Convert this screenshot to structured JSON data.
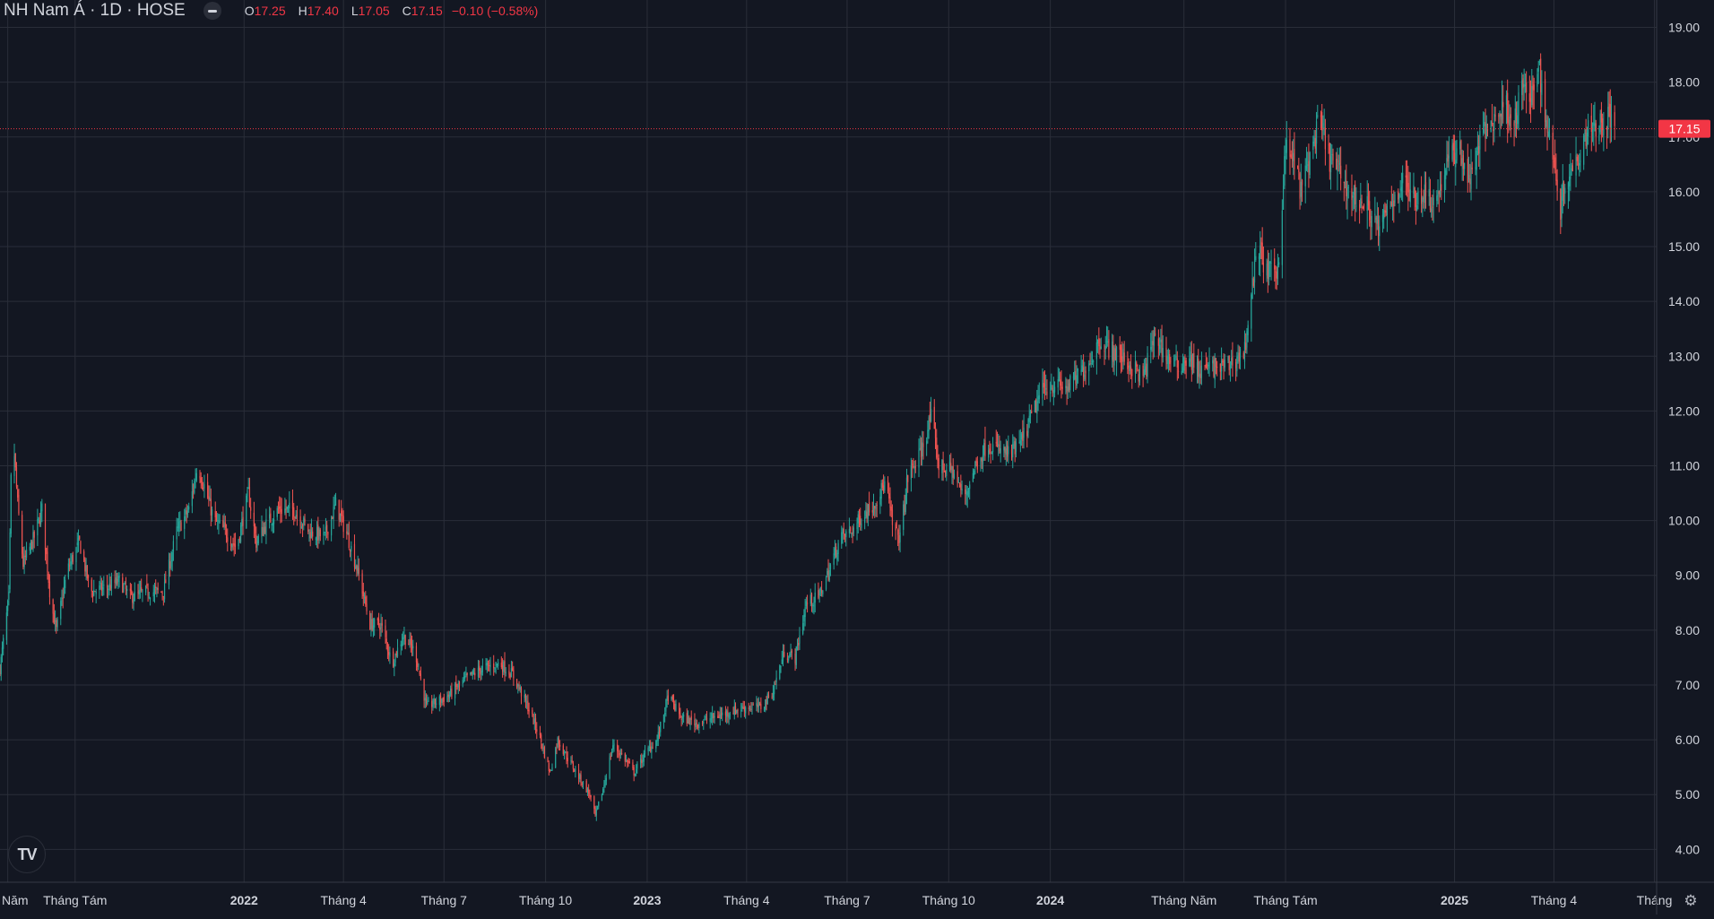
{
  "legend": {
    "title": "NH Nam Á · 1D · HOSE",
    "open_label": "O",
    "open_value": "17.25",
    "high_label": "H",
    "high_value": "17.40",
    "low_label": "L",
    "low_value": "17.05",
    "close_label": "C",
    "close_value": "17.15",
    "change": "−0.10 (−0.58%)"
  },
  "logo_text": "TV",
  "settings_icon": "⚙",
  "colors": {
    "background": "#131722",
    "grid": "#2a2e39",
    "up": "#26a69a",
    "down": "#ef5350",
    "price_label": "#f23645",
    "text": "#d1d4dc"
  },
  "chart_data": {
    "type": "candlestick",
    "symbol": "NH Nam Á",
    "interval": "1D",
    "exchange": "HOSE",
    "ylim": [
      3.4,
      19.5
    ],
    "y_ticks": [
      "19.00",
      "18.00",
      "17.00",
      "16.00",
      "15.00",
      "14.00",
      "13.00",
      "12.00",
      "11.00",
      "10.00",
      "9.00",
      "8.00",
      "7.00",
      "6.00",
      "5.00",
      "4.00"
    ],
    "x_ticks": [
      {
        "label": "Năm",
        "date": "2021-06-01",
        "bold": false
      },
      {
        "label": "Tháng Tám",
        "date": "2021-08-01",
        "bold": false
      },
      {
        "label": "2022",
        "date": "2022-01-01",
        "bold": true
      },
      {
        "label": "Tháng 4",
        "date": "2022-04-01",
        "bold": false
      },
      {
        "label": "Tháng 7",
        "date": "2022-07-01",
        "bold": false
      },
      {
        "label": "Tháng 10",
        "date": "2022-10-01",
        "bold": false
      },
      {
        "label": "2023",
        "date": "2023-01-01",
        "bold": true
      },
      {
        "label": "Tháng 4",
        "date": "2023-04-01",
        "bold": false
      },
      {
        "label": "Tháng 7",
        "date": "2023-07-01",
        "bold": false
      },
      {
        "label": "Tháng 10",
        "date": "2023-10-01",
        "bold": false
      },
      {
        "label": "2024",
        "date": "2024-01-01",
        "bold": true
      },
      {
        "label": "Tháng Năm",
        "date": "2024-05-01",
        "bold": false
      },
      {
        "label": "Tháng Tám",
        "date": "2024-08-01",
        "bold": false
      },
      {
        "label": "2025",
        "date": "2025-01-01",
        "bold": true
      },
      {
        "label": "Tháng 4",
        "date": "2025-04-01",
        "bold": false
      },
      {
        "label": "Tháng",
        "date": "2025-07-01",
        "bold": false
      }
    ],
    "last_price": 17.15,
    "last_price_label": "17.15",
    "close_path": [
      [
        "2021-05-25",
        7.3
      ],
      [
        "2021-06-02",
        8.6
      ],
      [
        "2021-06-05",
        11.8
      ],
      [
        "2021-06-10",
        10.3
      ],
      [
        "2021-06-15",
        9.2
      ],
      [
        "2021-06-25",
        9.7
      ],
      [
        "2021-07-02",
        10.2
      ],
      [
        "2021-07-10",
        8.5
      ],
      [
        "2021-07-15",
        8.0
      ],
      [
        "2021-07-25",
        9.1
      ],
      [
        "2021-08-05",
        9.6
      ],
      [
        "2021-08-15",
        8.7
      ],
      [
        "2021-09-01",
        8.8
      ],
      [
        "2021-09-10",
        8.9
      ],
      [
        "2021-09-20",
        8.6
      ],
      [
        "2021-10-05",
        8.7
      ],
      [
        "2021-10-20",
        8.7
      ],
      [
        "2021-11-01",
        9.8
      ],
      [
        "2021-11-12",
        10.2
      ],
      [
        "2021-11-20",
        11.0
      ],
      [
        "2021-11-25",
        10.7
      ],
      [
        "2021-12-05",
        10.0
      ],
      [
        "2021-12-15",
        9.8
      ],
      [
        "2021-12-25",
        9.5
      ],
      [
        "2022-01-05",
        10.5
      ],
      [
        "2022-01-12",
        9.6
      ],
      [
        "2022-01-20",
        9.9
      ],
      [
        "2022-02-01",
        10.2
      ],
      [
        "2022-02-15",
        10.2
      ],
      [
        "2022-03-01",
        9.8
      ],
      [
        "2022-03-15",
        9.7
      ],
      [
        "2022-03-25",
        10.3
      ],
      [
        "2022-04-05",
        9.7
      ],
      [
        "2022-04-15",
        9.0
      ],
      [
        "2022-04-25",
        8.1
      ],
      [
        "2022-05-05",
        8.1
      ],
      [
        "2022-05-15",
        7.4
      ],
      [
        "2022-05-25",
        7.9
      ],
      [
        "2022-06-05",
        7.6
      ],
      [
        "2022-06-15",
        6.6
      ],
      [
        "2022-06-25",
        6.7
      ],
      [
        "2022-07-05",
        6.8
      ],
      [
        "2022-07-20",
        7.1
      ],
      [
        "2022-08-05",
        7.3
      ],
      [
        "2022-08-20",
        7.4
      ],
      [
        "2022-09-01",
        7.2
      ],
      [
        "2022-09-15",
        6.6
      ],
      [
        "2022-09-25",
        6.1
      ],
      [
        "2022-10-05",
        5.4
      ],
      [
        "2022-10-12",
        6.0
      ],
      [
        "2022-10-20",
        5.7
      ],
      [
        "2022-11-01",
        5.3
      ],
      [
        "2022-11-10",
        5.0
      ],
      [
        "2022-11-15",
        4.6
      ],
      [
        "2022-11-22",
        5.1
      ],
      [
        "2022-12-01",
        5.9
      ],
      [
        "2022-12-10",
        5.7
      ],
      [
        "2022-12-20",
        5.4
      ],
      [
        "2023-01-01",
        5.8
      ],
      [
        "2023-01-10",
        6.0
      ],
      [
        "2023-01-20",
        6.8
      ],
      [
        "2023-02-01",
        6.4
      ],
      [
        "2023-02-15",
        6.3
      ],
      [
        "2023-03-01",
        6.4
      ],
      [
        "2023-03-15",
        6.5
      ],
      [
        "2023-04-01",
        6.6
      ],
      [
        "2023-04-15",
        6.6
      ],
      [
        "2023-04-25",
        6.9
      ],
      [
        "2023-05-05",
        7.6
      ],
      [
        "2023-05-15",
        7.5
      ],
      [
        "2023-05-25",
        8.5
      ],
      [
        "2023-06-05",
        8.6
      ],
      [
        "2023-06-15",
        9.1
      ],
      [
        "2023-06-25",
        9.7
      ],
      [
        "2023-07-05",
        9.8
      ],
      [
        "2023-07-15",
        10.1
      ],
      [
        "2023-07-25",
        10.3
      ],
      [
        "2023-08-05",
        10.7
      ],
      [
        "2023-08-12",
        9.8
      ],
      [
        "2023-08-18",
        9.7
      ],
      [
        "2023-08-25",
        10.8
      ],
      [
        "2023-09-05",
        11.2
      ],
      [
        "2023-09-15",
        11.9
      ],
      [
        "2023-09-22",
        11.0
      ],
      [
        "2023-10-05",
        10.9
      ],
      [
        "2023-10-15",
        10.4
      ],
      [
        "2023-10-25",
        11.0
      ],
      [
        "2023-11-05",
        11.4
      ],
      [
        "2023-11-15",
        11.3
      ],
      [
        "2023-11-25",
        11.2
      ],
      [
        "2023-12-05",
        11.4
      ],
      [
        "2023-12-15",
        11.9
      ],
      [
        "2023-12-25",
        12.4
      ],
      [
        "2024-01-05",
        12.5
      ],
      [
        "2024-01-15",
        12.4
      ],
      [
        "2024-01-25",
        12.6
      ],
      [
        "2024-02-05",
        12.9
      ],
      [
        "2024-02-15",
        13.3
      ],
      [
        "2024-02-25",
        13.1
      ],
      [
        "2024-03-05",
        13.0
      ],
      [
        "2024-03-15",
        12.8
      ],
      [
        "2024-03-25",
        12.6
      ],
      [
        "2024-04-05",
        13.4
      ],
      [
        "2024-04-15",
        13.0
      ],
      [
        "2024-04-25",
        12.8
      ],
      [
        "2024-05-05",
        13.0
      ],
      [
        "2024-05-15",
        12.7
      ],
      [
        "2024-05-25",
        12.8
      ],
      [
        "2024-06-05",
        12.8
      ],
      [
        "2024-06-15",
        12.9
      ],
      [
        "2024-06-25",
        13.1
      ],
      [
        "2024-07-01",
        14.2
      ],
      [
        "2024-07-08",
        15.0
      ],
      [
        "2024-07-15",
        14.5
      ],
      [
        "2024-07-25",
        14.6
      ],
      [
        "2024-08-01",
        16.8
      ],
      [
        "2024-08-10",
        16.5
      ],
      [
        "2024-08-15",
        16.0
      ],
      [
        "2024-08-25",
        16.8
      ],
      [
        "2024-09-01",
        17.3
      ],
      [
        "2024-09-10",
        16.6
      ],
      [
        "2024-09-20",
        16.3
      ],
      [
        "2024-10-01",
        15.9
      ],
      [
        "2024-10-15",
        15.7
      ],
      [
        "2024-10-25",
        15.3
      ],
      [
        "2024-11-05",
        15.8
      ],
      [
        "2024-11-15",
        16.2
      ],
      [
        "2024-11-25",
        15.9
      ],
      [
        "2024-12-05",
        16.0
      ],
      [
        "2024-12-15",
        15.8
      ],
      [
        "2024-12-25",
        16.5
      ],
      [
        "2025-01-05",
        16.8
      ],
      [
        "2025-01-15",
        16.2
      ],
      [
        "2025-01-25",
        17.0
      ],
      [
        "2025-02-05",
        17.3
      ],
      [
        "2025-02-15",
        17.6
      ],
      [
        "2025-02-25",
        17.3
      ],
      [
        "2025-03-05",
        18.0
      ],
      [
        "2025-03-10",
        17.5
      ],
      [
        "2025-03-18",
        18.4
      ],
      [
        "2025-03-25",
        17.2
      ],
      [
        "2025-04-01",
        16.7
      ],
      [
        "2025-04-06",
        15.6
      ],
      [
        "2025-04-12",
        16.3
      ],
      [
        "2025-04-20",
        16.5
      ],
      [
        "2025-04-28",
        17.0
      ],
      [
        "2025-05-05",
        17.3
      ],
      [
        "2025-05-12",
        17.2
      ],
      [
        "2025-05-20",
        17.4
      ],
      [
        "2025-05-26",
        17.15
      ]
    ]
  }
}
